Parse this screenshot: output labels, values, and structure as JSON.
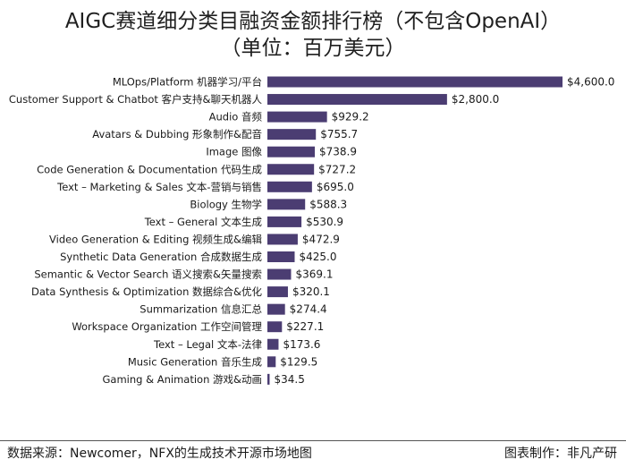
{
  "title": "AIGC赛道细分类目融资金额排行榜（不包含OpenAI）",
  "subtitle": "（单位：百万美元）",
  "footer": {
    "source": "数据来源：Newcomer，NFX的生成技术开源市场地图",
    "credit": "图表制作：非凡产研"
  },
  "chart_data": {
    "type": "bar",
    "orientation": "horizontal",
    "categories": [
      "MLOps/Platform 机器学习/平台",
      "Customer Support & Chatbot 客户支持&聊天机器人",
      "Audio 音频",
      "Avatars & Dubbing 形象制作&配音",
      "Image 图像",
      "Code Generation & Documentation 代码生成",
      "Text – Marketing & Sales 文本-营销与销售",
      "Biology 生物学",
      "Text – General 文本生成",
      "Video Generation & Editing 视频生成&编辑",
      "Synthetic Data Generation 合成数据生成",
      "Semantic & Vector Search 语义搜索&矢量搜索",
      "Data Synthesis & Optimization 数据综合&优化",
      "Summarization 信息汇总",
      "Workspace Organization 工作空间管理",
      "Text – Legal 文本-法律",
      "Music Generation 音乐生成",
      "Gaming & Animation 游戏&动画"
    ],
    "values": [
      4600.0,
      2800.0,
      929.2,
      755.7,
      738.9,
      727.2,
      695.0,
      588.3,
      530.9,
      472.9,
      425.0,
      369.1,
      320.1,
      274.4,
      227.1,
      173.6,
      129.5,
      34.5
    ],
    "value_labels": [
      "$4,600.0",
      "$2,800.0",
      "$929.2",
      "$755.7",
      "$738.9",
      "$727.2",
      "$695.0",
      "$588.3",
      "$530.9",
      "$472.9",
      "$425.0",
      "$369.1",
      "$320.1",
      "$274.4",
      "$227.1",
      "$173.6",
      "$129.5",
      "$34.5"
    ],
    "xlim": [
      0,
      4600
    ],
    "bar_color": "#4b3d72",
    "grid": false,
    "legend": "none"
  }
}
